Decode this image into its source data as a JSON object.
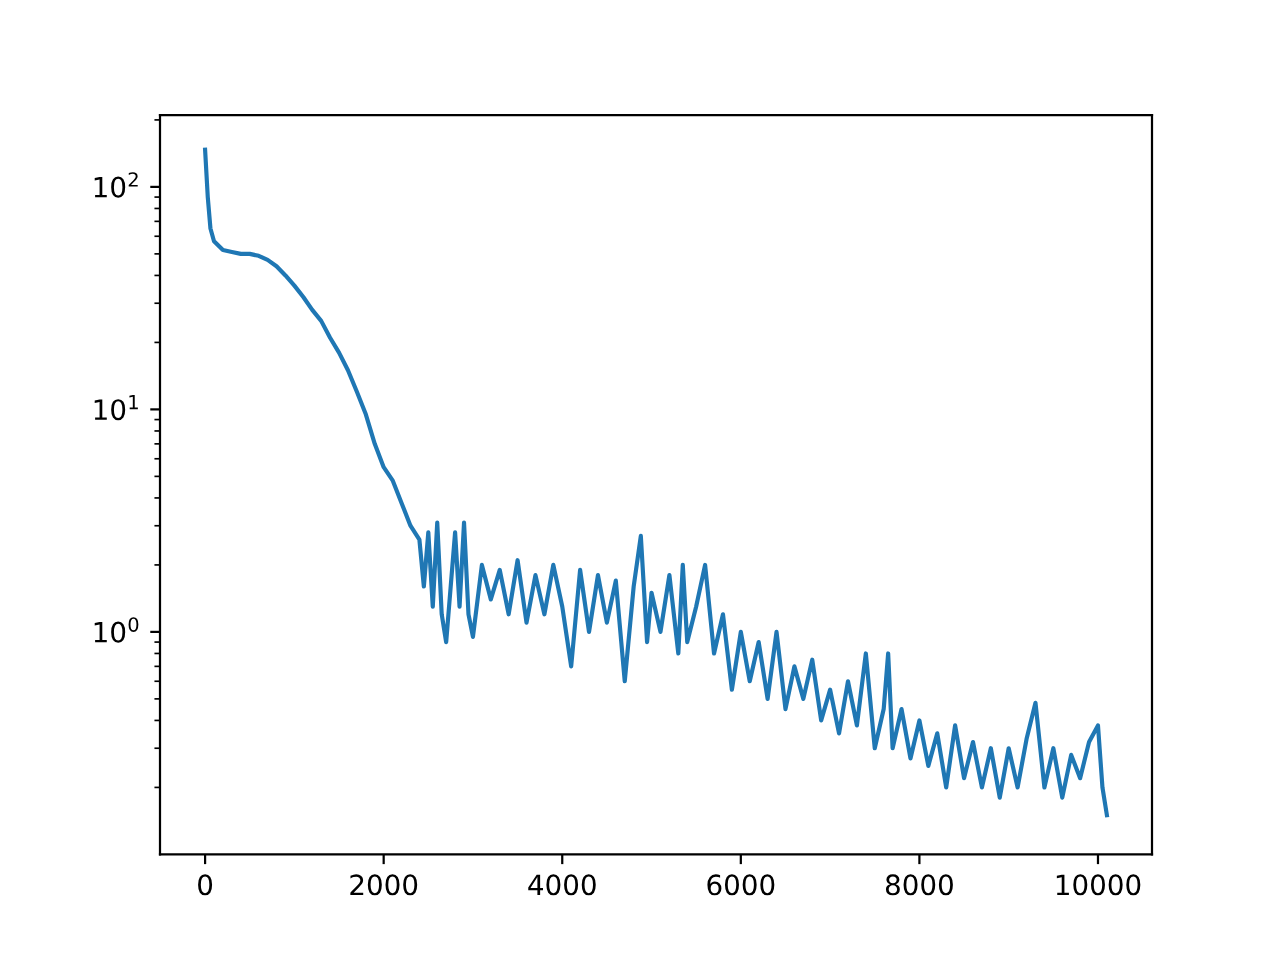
{
  "chart_data": {
    "type": "line",
    "log": "y",
    "grid": false,
    "legend": false,
    "xlim": [
      -505,
      10605
    ],
    "ylim": [
      0.1,
      210
    ],
    "xticks": [
      0,
      2000,
      4000,
      6000,
      8000,
      10000
    ],
    "yticks": [
      {
        "value": 1,
        "label": "10$^{0}$"
      },
      {
        "value": 10,
        "label": "10$^{1}$"
      },
      {
        "value": 100,
        "label": "10$^{2}$"
      }
    ],
    "series": [
      {
        "color": "#1f77b4",
        "x": [
          0,
          30,
          60,
          100,
          200,
          300,
          400,
          500,
          600,
          700,
          800,
          900,
          1000,
          1100,
          1200,
          1300,
          1400,
          1500,
          1600,
          1700,
          1800,
          1900,
          2000,
          2100,
          2200,
          2300,
          2400,
          2450,
          2500,
          2550,
          2600,
          2650,
          2700,
          2800,
          2850,
          2900,
          2950,
          3000,
          3100,
          3200,
          3300,
          3400,
          3500,
          3600,
          3700,
          3800,
          3900,
          4000,
          4100,
          4200,
          4300,
          4400,
          4500,
          4600,
          4700,
          4800,
          4880,
          4950,
          5000,
          5100,
          5200,
          5300,
          5350,
          5400,
          5500,
          5600,
          5700,
          5800,
          5900,
          6000,
          6100,
          6200,
          6300,
          6400,
          6500,
          6600,
          6700,
          6800,
          6900,
          7000,
          7100,
          7200,
          7300,
          7400,
          7500,
          7600,
          7650,
          7700,
          7800,
          7900,
          8000,
          8100,
          8200,
          8300,
          8400,
          8500,
          8600,
          8700,
          8800,
          8900,
          9000,
          9100,
          9200,
          9300,
          9400,
          9500,
          9600,
          9700,
          9800,
          9900,
          10000,
          10050,
          10100
        ],
        "values": [
          147,
          90,
          65,
          57,
          52,
          51,
          50,
          50,
          49,
          47,
          44,
          40,
          36,
          32,
          28,
          25,
          21,
          18,
          15,
          12,
          9.5,
          7,
          5.5,
          4.8,
          3.8,
          3.0,
          2.6,
          1.6,
          2.8,
          1.3,
          3.1,
          1.2,
          0.9,
          2.8,
          1.3,
          3.1,
          1.2,
          0.95,
          2.0,
          1.4,
          1.9,
          1.2,
          2.1,
          1.1,
          1.8,
          1.2,
          2.0,
          1.3,
          0.7,
          1.9,
          1.0,
          1.8,
          1.1,
          1.7,
          0.6,
          1.6,
          2.7,
          0.9,
          1.5,
          1.0,
          1.8,
          0.8,
          2.0,
          0.9,
          1.3,
          2.0,
          0.8,
          1.2,
          0.55,
          1.0,
          0.6,
          0.9,
          0.5,
          1.0,
          0.45,
          0.7,
          0.5,
          0.75,
          0.4,
          0.55,
          0.35,
          0.6,
          0.38,
          0.8,
          0.3,
          0.45,
          0.8,
          0.3,
          0.45,
          0.27,
          0.4,
          0.25,
          0.35,
          0.2,
          0.38,
          0.22,
          0.32,
          0.2,
          0.3,
          0.18,
          0.3,
          0.2,
          0.33,
          0.48,
          0.2,
          0.3,
          0.18,
          0.28,
          0.22,
          0.32,
          0.38,
          0.2,
          0.15
        ]
      }
    ]
  }
}
